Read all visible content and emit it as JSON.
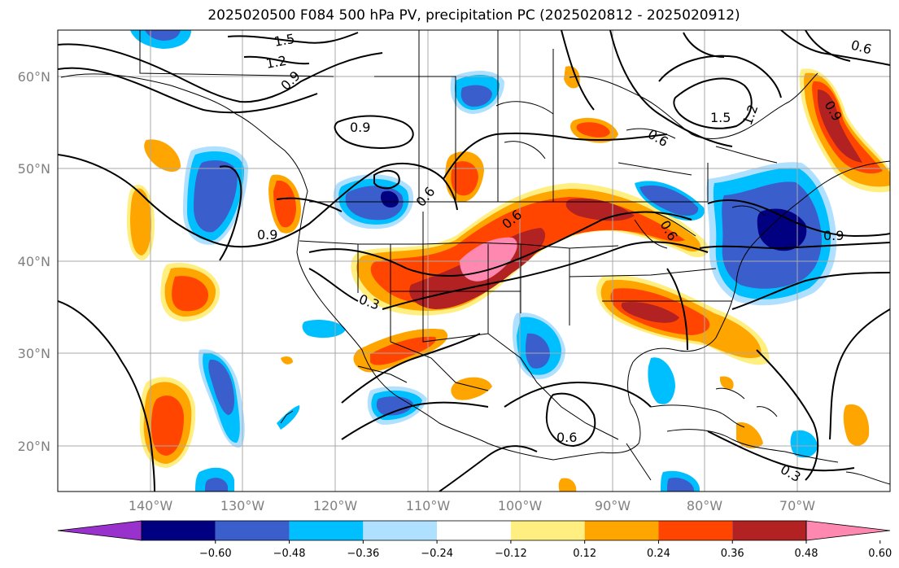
{
  "title": "2025020500 F084 500 hPa PV, precipitation PC (2025020812 - 2025020912)",
  "latitudes": [
    {
      "value": 60,
      "label": "60°N"
    },
    {
      "value": 50,
      "label": "50°N"
    },
    {
      "value": 40,
      "label": "40°N"
    },
    {
      "value": 30,
      "label": "30°N"
    },
    {
      "value": 20,
      "label": "20°N"
    }
  ],
  "longitudes": [
    {
      "value": -140,
      "label": "140°W"
    },
    {
      "value": -130,
      "label": "130°W"
    },
    {
      "value": -120,
      "label": "120°W"
    },
    {
      "value": -110,
      "label": "110°W"
    },
    {
      "value": -100,
      "label": "100°W"
    },
    {
      "value": -90,
      "label": "90°W"
    },
    {
      "value": -80,
      "label": "80°W"
    },
    {
      "value": -70,
      "label": "70°W"
    }
  ],
  "map_extent": {
    "lon": [
      -150,
      -60
    ],
    "lat": [
      15,
      65
    ]
  },
  "colorbar": {
    "levels": [
      "−0.60",
      "−0.48",
      "−0.36",
      "−0.24",
      "−0.12",
      "0.12",
      "0.24",
      "0.36",
      "0.48",
      "0.60"
    ],
    "colors": [
      "#9932cc",
      "#000080",
      "#3a5fcd",
      "#00bfff",
      "#b0e0ff",
      "#ffffff",
      "#ffee80",
      "#ffa500",
      "#ff4500",
      "#b22222",
      "#ff88b0"
    ]
  },
  "pv_contour_labels": [
    "1.5",
    "1.2",
    "0.9",
    "0.9",
    "0.9",
    "0.6",
    "0.6",
    "0.6",
    "0.6",
    "1.5",
    "1.2",
    "0.9",
    "0.9",
    "0.6",
    "0.3",
    "0.6",
    "0.3"
  ],
  "colors": {
    "contour": "#000000",
    "grid": "#a9a9a9",
    "coast": "#000000"
  }
}
